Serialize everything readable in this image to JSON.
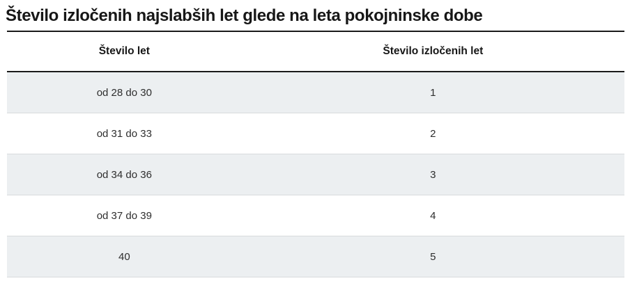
{
  "title": "Število izločenih najslabših let glede na leta pokojninske dobe",
  "chart_data": {
    "type": "table",
    "title": "Število izločenih najslabših let glede na leta pokojninske dobe",
    "columns": [
      "Število let",
      "Število izločenih let"
    ],
    "rows": [
      [
        "od 28 do 30",
        "1"
      ],
      [
        "od 31 do 33",
        "2"
      ],
      [
        "od 34 do 36",
        "3"
      ],
      [
        "od 37 do 39",
        "4"
      ],
      [
        "40",
        "5"
      ]
    ],
    "layout": {
      "zebra_striping": true,
      "column_alignment": "center"
    }
  },
  "colors": {
    "stripe_row_bg": "#eceff1",
    "row_separator": "#d7dadc",
    "heavy_rule": "#1a1a1a",
    "title_text": "#171717",
    "body_text": "#2e2e2e",
    "page_bg": "#ffffff"
  }
}
